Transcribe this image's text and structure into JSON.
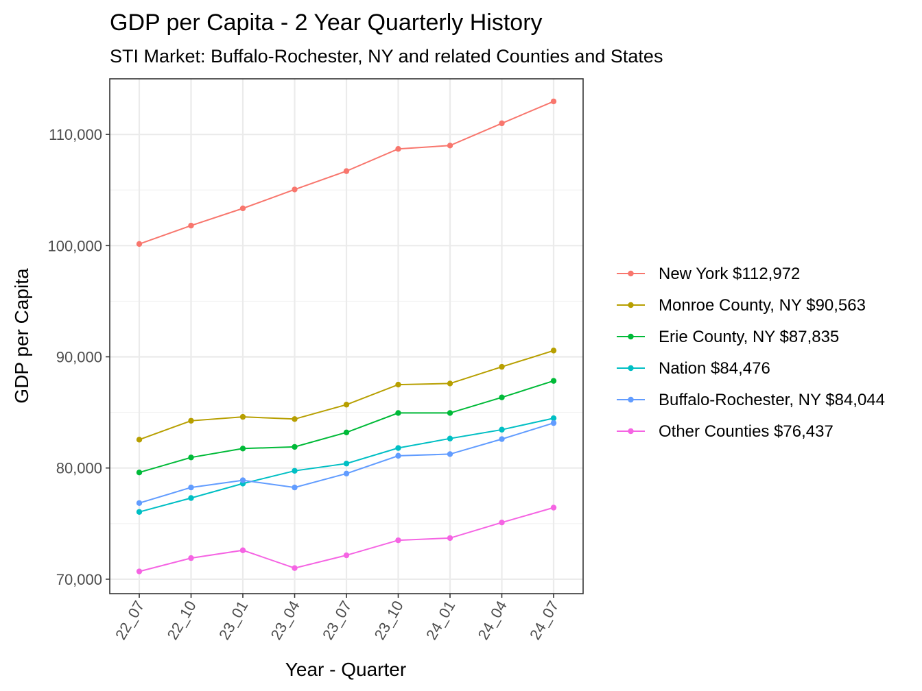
{
  "chart_data": {
    "type": "line",
    "title": "GDP per Capita - 2 Year Quarterly History",
    "subtitle": "STI Market: Buffalo-Rochester, NY and related Counties and States",
    "xlabel": "Year - Quarter",
    "ylabel": "GDP per Capita",
    "categories": [
      "22_07",
      "22_10",
      "23_01",
      "23_04",
      "23_07",
      "23_10",
      "24_01",
      "24_04",
      "24_07"
    ],
    "y_ticks": [
      70000,
      80000,
      90000,
      100000,
      110000
    ],
    "y_tick_labels": [
      "70,000",
      "80,000",
      "90,000",
      "100,000",
      "110,000"
    ],
    "ylim": [
      68700,
      115000
    ],
    "grid": true,
    "legend_position": "right",
    "series": [
      {
        "name": "New York $112,972",
        "color": "#F8766D",
        "values": [
          100150,
          101800,
          103350,
          105050,
          106700,
          108700,
          109000,
          111000,
          112972
        ]
      },
      {
        "name": "Monroe County, NY $90,563",
        "color": "#B79F00",
        "values": [
          82550,
          84250,
          84600,
          84400,
          85700,
          87500,
          87600,
          89100,
          90563
        ]
      },
      {
        "name": "Erie County, NY $87,835",
        "color": "#00BA38",
        "values": [
          79600,
          80950,
          81750,
          81900,
          83200,
          84950,
          84950,
          86350,
          87835
        ]
      },
      {
        "name": "Nation $84,476",
        "color": "#00BFC4",
        "values": [
          76050,
          77300,
          78600,
          79750,
          80400,
          81800,
          82650,
          83450,
          84476
        ]
      },
      {
        "name": "Buffalo-Rochester, NY $84,044",
        "color": "#619CFF",
        "values": [
          76850,
          78250,
          78900,
          78250,
          79500,
          81100,
          81250,
          82600,
          84044
        ]
      },
      {
        "name": "Other Counties $76,437",
        "color": "#F564E3",
        "values": [
          70700,
          71900,
          72600,
          71000,
          72150,
          73500,
          73700,
          75100,
          76437
        ]
      }
    ]
  }
}
